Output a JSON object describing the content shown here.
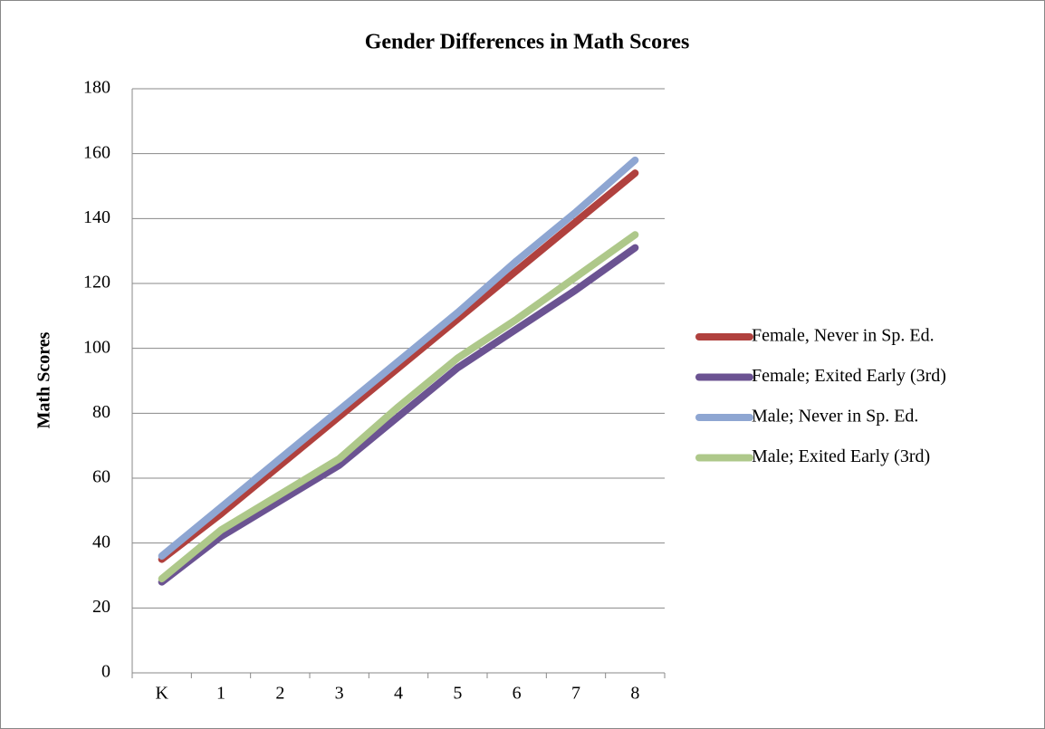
{
  "chart_data": {
    "type": "line",
    "title": "Gender Differences in Math Scores",
    "y_label": "Math Scores",
    "categories": [
      "K",
      "1",
      "2",
      "3",
      "4",
      "5",
      "6",
      "7",
      "8"
    ],
    "series": [
      {
        "name": "Female, Never in Sp. Ed.",
        "color": "#b0413e",
        "values": [
          35,
          49,
          64,
          79,
          94,
          109,
          124,
          139,
          154
        ]
      },
      {
        "name": "Female; Exited Early (3rd)",
        "color": "#6b5392",
        "values": [
          28,
          42,
          53,
          64,
          79,
          94,
          106,
          118,
          131
        ]
      },
      {
        "name": "Male; Never in Sp. Ed.",
        "color": "#8ea6d2",
        "values": [
          36,
          51,
          66,
          81,
          96,
          111,
          127,
          142,
          158
        ]
      },
      {
        "name": "Male; Exited Early (3rd)",
        "color": "#aec88a",
        "values": [
          29,
          44,
          55,
          66,
          82,
          97,
          109,
          122,
          135
        ]
      }
    ],
    "ylim": [
      0,
      180
    ],
    "yticks": [
      0,
      20,
      40,
      60,
      80,
      100,
      120,
      140,
      160,
      180
    ],
    "grid": true,
    "legend": "right"
  }
}
